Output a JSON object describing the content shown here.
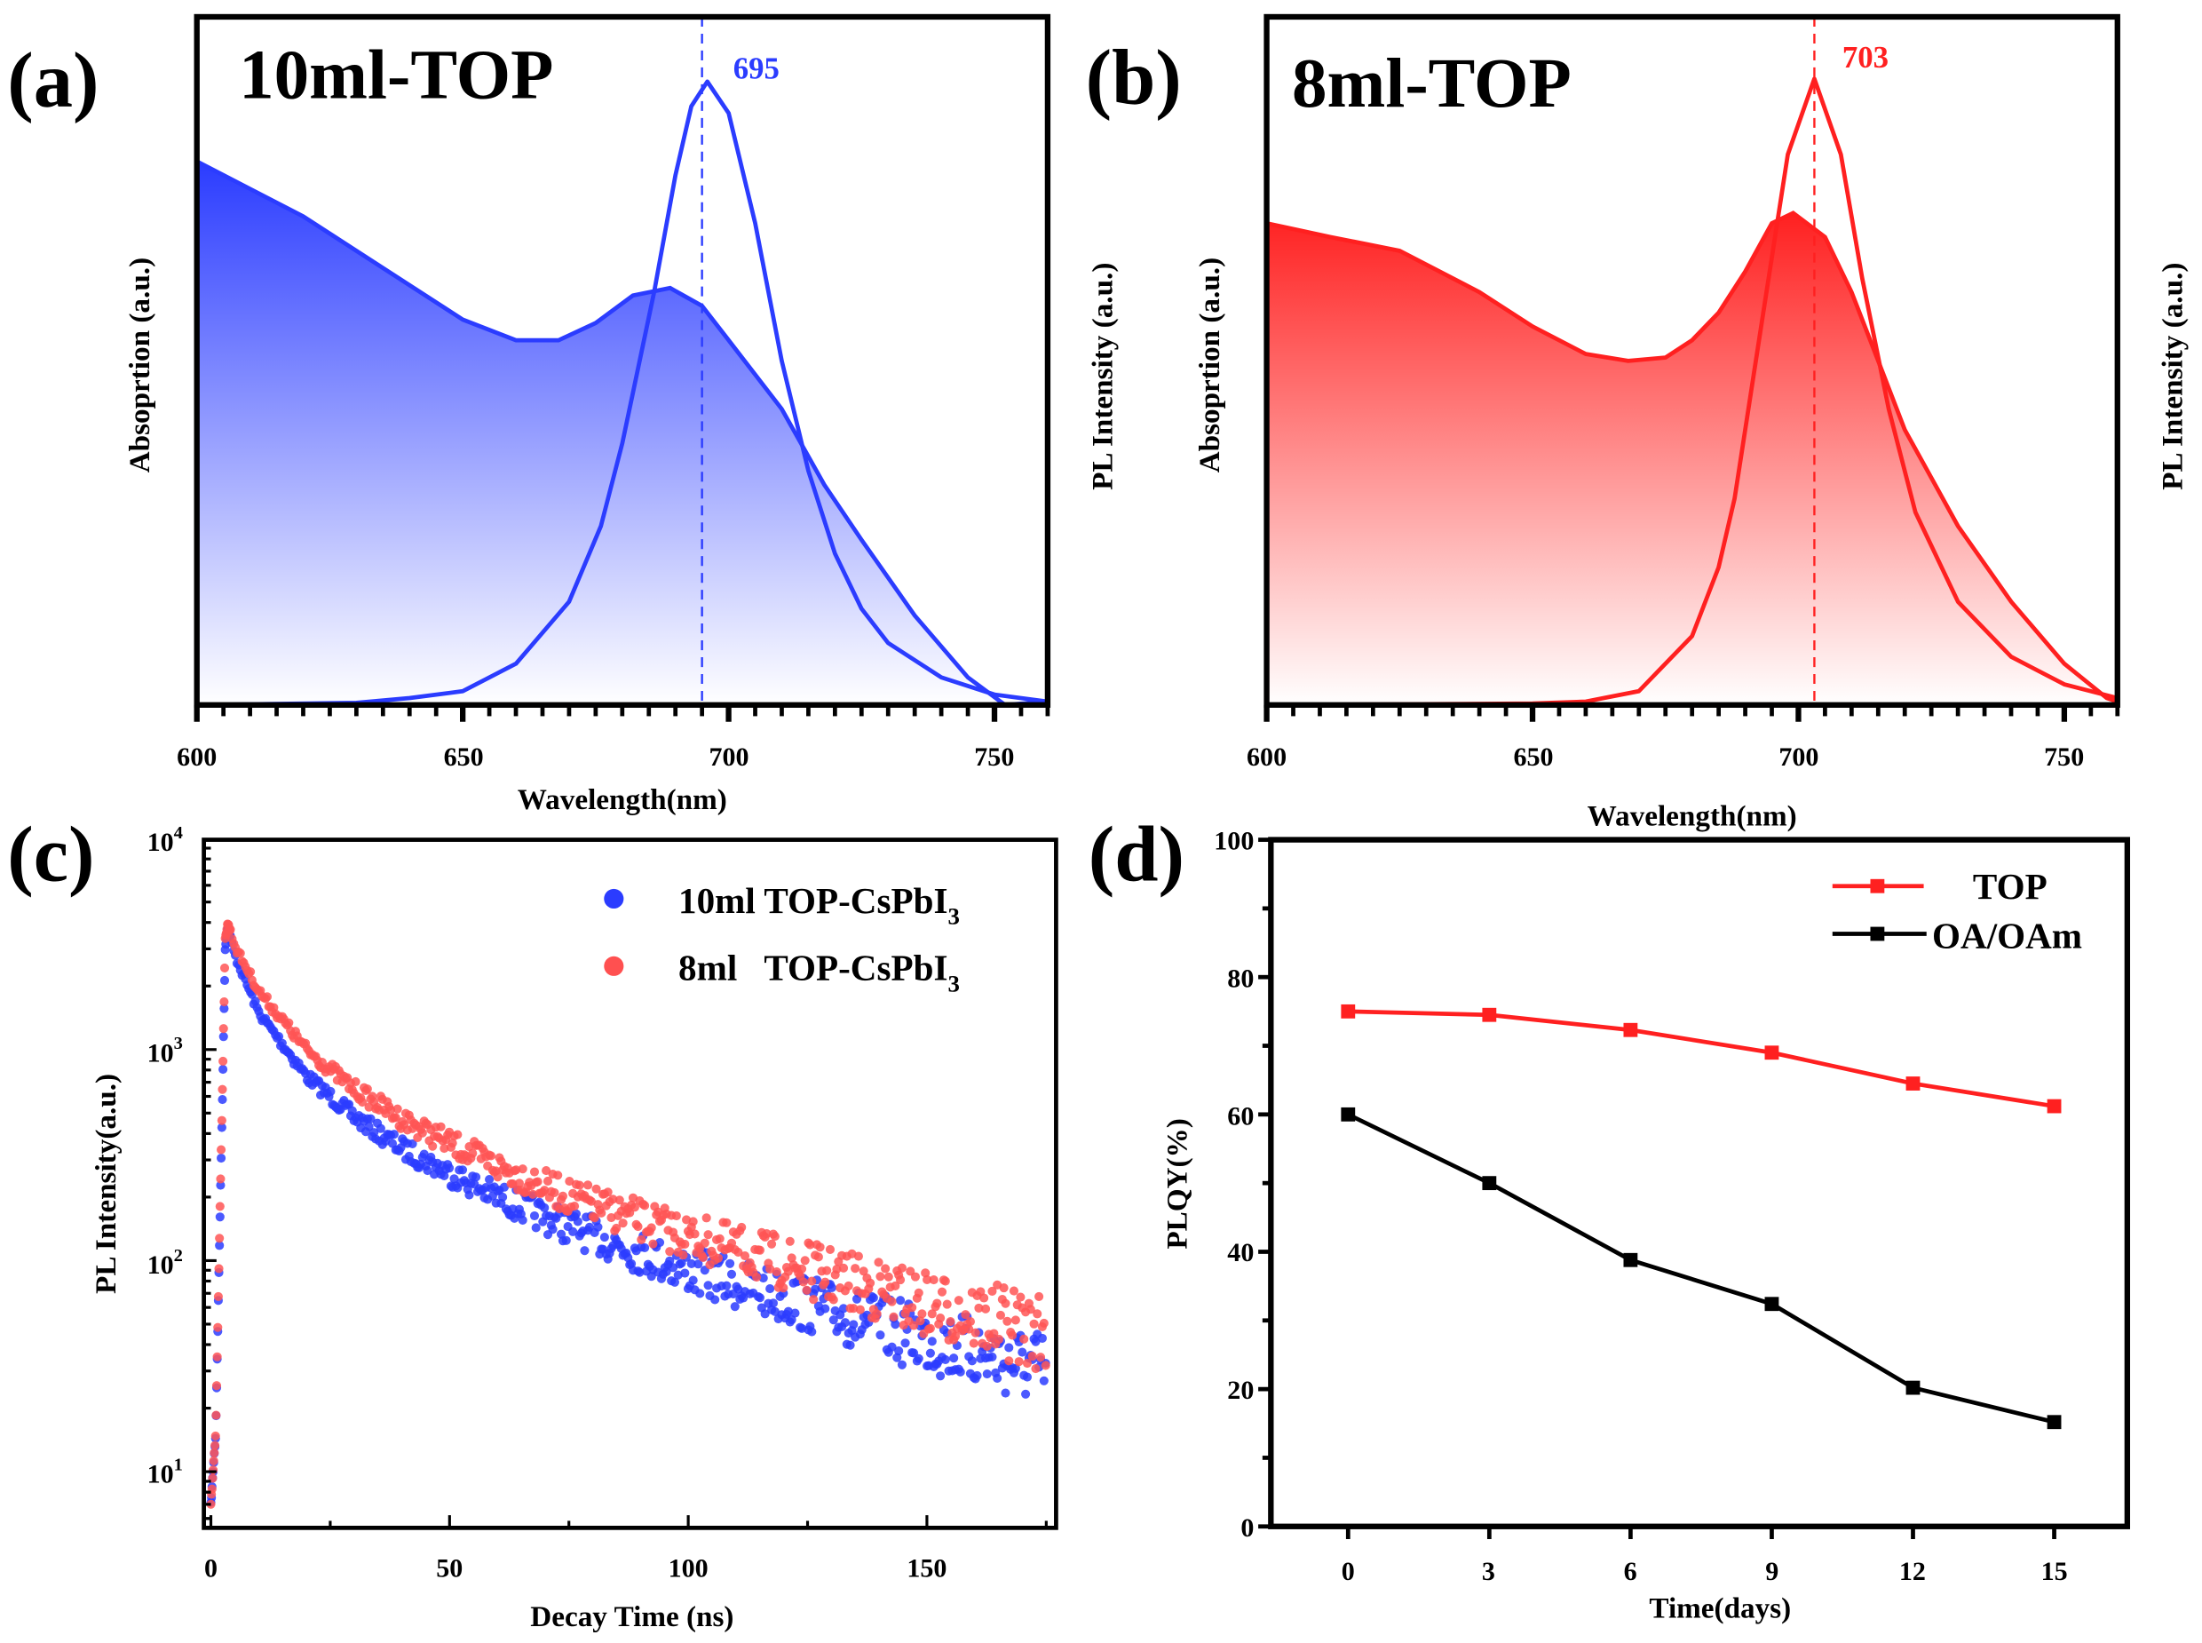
{
  "colors": {
    "blue": "#2b3cff",
    "red": "#ff2020",
    "black": "#000000"
  },
  "chart_data": [
    {
      "panel": "(a)",
      "type": "area",
      "title": "10ml-TOP",
      "xlabel": "Wavelength(nm)",
      "ylabel_left": "Absoprtion (a.u.)",
      "ylabel_right": "PL Intensity (a.u.)",
      "xlim": [
        600,
        760
      ],
      "xticks": [
        "600",
        "650",
        "700",
        "750"
      ],
      "peak_label": "695",
      "peak": 695,
      "series": [
        {
          "name": "Absorption",
          "x": [
            600,
            610,
            620,
            630,
            640,
            650,
            660,
            668,
            675,
            682,
            689,
            695,
            700,
            705,
            710,
            718,
            725,
            735,
            745,
            752,
            760
          ],
          "y": [
            0.79,
            0.75,
            0.71,
            0.66,
            0.61,
            0.56,
            0.53,
            0.53,
            0.555,
            0.595,
            0.606,
            0.58,
            0.53,
            0.48,
            0.43,
            0.32,
            0.24,
            0.13,
            0.04,
            0.0,
            0.005
          ]
        },
        {
          "name": "PL",
          "x": [
            600,
            630,
            640,
            650,
            660,
            670,
            676,
            680,
            686,
            690,
            693,
            696,
            700,
            705,
            710,
            715,
            720,
            725,
            730,
            740,
            750,
            760
          ],
          "y": [
            0,
            0.003,
            0.01,
            0.02,
            0.06,
            0.15,
            0.26,
            0.38,
            0.6,
            0.77,
            0.87,
            0.906,
            0.86,
            0.7,
            0.5,
            0.34,
            0.22,
            0.14,
            0.09,
            0.04,
            0.015,
            0.005
          ]
        }
      ]
    },
    {
      "panel": "(b)",
      "type": "area",
      "title": "8ml-TOP",
      "xlabel": "Wavelength(nm)",
      "ylabel_left": "Absoprtion (a.u.)",
      "ylabel_right": "PL Intensity (a.u.)",
      "xlim": [
        600,
        760
      ],
      "xticks": [
        "600",
        "650",
        "700",
        "750"
      ],
      "peak_label": "703",
      "peak": 703,
      "series": [
        {
          "name": "Absorption",
          "x": [
            600,
            612,
            625,
            640,
            650,
            660,
            668,
            675,
            680,
            685,
            690,
            695,
            699,
            705,
            710,
            715,
            720,
            730,
            740,
            750,
            758,
            760
          ],
          "y": [
            0.7,
            0.68,
            0.66,
            0.6,
            0.55,
            0.51,
            0.5,
            0.505,
            0.53,
            0.57,
            0.63,
            0.7,
            0.715,
            0.68,
            0.6,
            0.5,
            0.4,
            0.26,
            0.15,
            0.06,
            0.01,
            0.005
          ]
        },
        {
          "name": "PL",
          "x": [
            600,
            650,
            660,
            670,
            680,
            685,
            688,
            693,
            698,
            703,
            708,
            712,
            717,
            722,
            730,
            740,
            750,
            760
          ],
          "y": [
            0,
            0.002,
            0.005,
            0.02,
            0.1,
            0.2,
            0.3,
            0.55,
            0.8,
            0.91,
            0.8,
            0.62,
            0.43,
            0.28,
            0.15,
            0.07,
            0.03,
            0.01
          ]
        }
      ]
    },
    {
      "panel": "(c)",
      "type": "scatter",
      "xlabel": "Decay Time (ns)",
      "ylabel": "PL Intensity(a.u.)",
      "yscale": "log",
      "xlim": [
        0,
        177
      ],
      "ylim": [
        5.4,
        10000
      ],
      "xticks": [
        "0",
        "50",
        "100",
        "150"
      ],
      "yticks": [
        {
          "base": "10",
          "exp": "4"
        },
        {
          "base": "10",
          "exp": "3"
        },
        {
          "base": "10",
          "exp": "2"
        },
        {
          "base": "10",
          "exp": "1"
        }
      ],
      "legend_position": "top-right",
      "series": [
        {
          "name": "10ml TOP-CsPbI",
          "sub": "3",
          "t": [
            0,
            1,
            2,
            3,
            3.5,
            5,
            10,
            20,
            30,
            40,
            50,
            60,
            75,
            100,
            125,
            150,
            175
          ],
          "y": [
            7,
            15,
            200,
            3000,
            3800,
            2800,
            1500,
            750,
            480,
            340,
            260,
            200,
            145,
            90,
            62,
            42,
            30
          ]
        },
        {
          "name": "8ml   TOP-CsPbI",
          "sub": "3",
          "t": [
            0,
            1,
            2,
            3,
            3.5,
            5,
            10,
            20,
            30,
            40,
            50,
            60,
            75,
            100,
            125,
            150,
            175
          ],
          "y": [
            7,
            15,
            220,
            3300,
            4000,
            3100,
            1900,
            1000,
            650,
            470,
            360,
            280,
            200,
            130,
            90,
            62,
            45
          ]
        }
      ]
    },
    {
      "panel": "(d)",
      "type": "line",
      "xlabel": "Time(days)",
      "ylabel": "PLQY(%)",
      "xlim": [
        -2,
        16.5
      ],
      "ylim": [
        0,
        100
      ],
      "x": [
        0,
        3,
        6,
        9,
        12,
        15
      ],
      "xticks": [
        "0",
        "3",
        "6",
        "9",
        "12",
        "15"
      ],
      "yticks": [
        "0",
        "20",
        "40",
        "60",
        "80",
        "100"
      ],
      "legend_position": "top-right",
      "series": [
        {
          "name": "TOP",
          "values": [
            75,
            74.5,
            72.3,
            69,
            64.5,
            61.2
          ]
        },
        {
          "name": "OA/OAm",
          "values": [
            60,
            50,
            38.8,
            32.4,
            20.2,
            15.2
          ]
        }
      ]
    }
  ]
}
